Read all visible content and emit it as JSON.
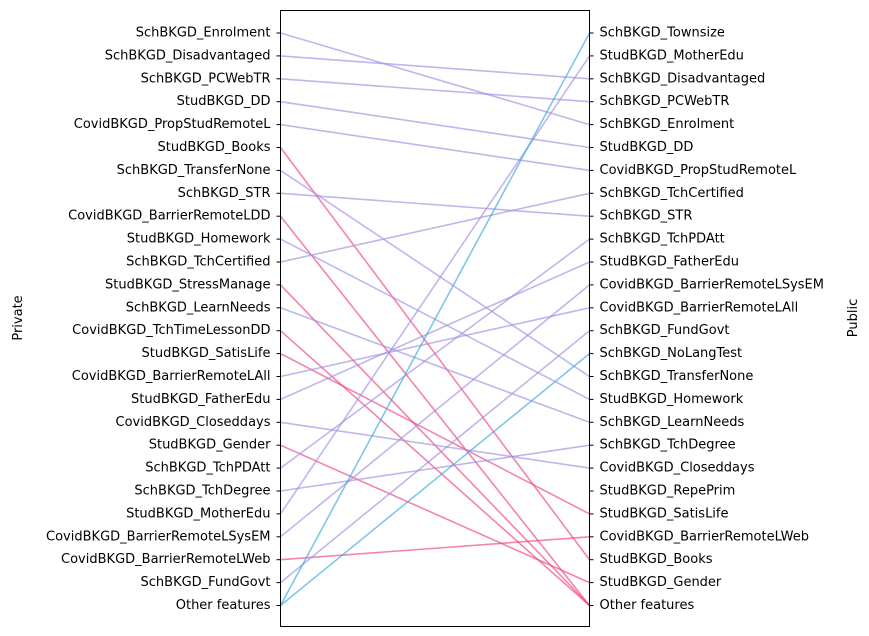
{
  "chart_data": {
    "type": "slope",
    "left_axis_label": "Private",
    "right_axis_label": "Public",
    "left_labels": [
      "SchBKGD_Enrolment",
      "SchBKGD_Disadvantaged",
      "SchBKGD_PCWebTR",
      "StudBKGD_DD",
      "CovidBKGD_PropStudRemoteL",
      "StudBKGD_Books",
      "SchBKGD_TransferNone",
      "SchBKGD_STR",
      "CovidBKGD_BarrierRemoteLDD",
      "StudBKGD_Homework",
      "SchBKGD_TchCertified",
      "StudBKGD_StressManage",
      "SchBKGD_LearnNeeds",
      "CovidBKGD_TchTimeLessonDD",
      "StudBKGD_SatisLife",
      "CovidBKGD_BarrierRemoteLAll",
      "StudBKGD_FatherEdu",
      "CovidBKGD_Closeddays",
      "StudBKGD_Gender",
      "SchBKGD_TchPDAtt",
      "SchBKGD_TchDegree",
      "StudBKGD_MotherEdu",
      "CovidBKGD_BarrierRemoteLSysEM",
      "CovidBKGD_BarrierRemoteLWeb",
      "SchBKGD_FundGovt",
      "Other features"
    ],
    "right_labels": [
      "SchBKGD_Townsize",
      "StudBKGD_MotherEdu",
      "SchBKGD_Disadvantaged",
      "SchBKGD_PCWebTR",
      "SchBKGD_Enrolment",
      "StudBKGD_DD",
      "CovidBKGD_PropStudRemoteL",
      "SchBKGD_TchCertified",
      "SchBKGD_STR",
      "SchBKGD_TchPDAtt",
      "StudBKGD_FatherEdu",
      "CovidBKGD_BarrierRemoteLSysEM",
      "CovidBKGD_BarrierRemoteLAll",
      "SchBKGD_FundGovt",
      "SchBKGD_NoLangTest",
      "SchBKGD_TransferNone",
      "StudBKGD_Homework",
      "SchBKGD_LearnNeeds",
      "SchBKGD_TchDegree",
      "CovidBKGD_Closeddays",
      "StudBKGD_RepePrim",
      "StudBKGD_SatisLife",
      "CovidBKGD_BarrierRemoteLWeb",
      "StudBKGD_Books",
      "StudBKGD_Gender",
      "Other features"
    ],
    "connections": [
      {
        "left": 0,
        "right": 4,
        "group": "same"
      },
      {
        "left": 1,
        "right": 2,
        "group": "same"
      },
      {
        "left": 2,
        "right": 3,
        "group": "same"
      },
      {
        "left": 3,
        "right": 5,
        "group": "same"
      },
      {
        "left": 4,
        "right": 6,
        "group": "same"
      },
      {
        "left": 5,
        "right": 23,
        "group": "down"
      },
      {
        "left": 6,
        "right": 15,
        "group": "same"
      },
      {
        "left": 7,
        "right": 8,
        "group": "same"
      },
      {
        "left": 8,
        "right": 25,
        "group": "down"
      },
      {
        "left": 9,
        "right": 16,
        "group": "same"
      },
      {
        "left": 10,
        "right": 7,
        "group": "same"
      },
      {
        "left": 11,
        "right": 25,
        "group": "down"
      },
      {
        "left": 12,
        "right": 17,
        "group": "same"
      },
      {
        "left": 13,
        "right": 25,
        "group": "down"
      },
      {
        "left": 14,
        "right": 21,
        "group": "down"
      },
      {
        "left": 15,
        "right": 12,
        "group": "same"
      },
      {
        "left": 16,
        "right": 10,
        "group": "same"
      },
      {
        "left": 17,
        "right": 19,
        "group": "same"
      },
      {
        "left": 18,
        "right": 24,
        "group": "down"
      },
      {
        "left": 19,
        "right": 9,
        "group": "same"
      },
      {
        "left": 20,
        "right": 18,
        "group": "same"
      },
      {
        "left": 21,
        "right": 1,
        "group": "same"
      },
      {
        "left": 22,
        "right": 11,
        "group": "same"
      },
      {
        "left": 23,
        "right": 22,
        "group": "down"
      },
      {
        "left": 24,
        "right": 13,
        "group": "same"
      },
      {
        "left": 25,
        "right": 0,
        "group": "up"
      },
      {
        "left": 25,
        "right": 14,
        "group": "up"
      }
    ],
    "colors": {
      "same": "#9d8fe0",
      "down": "#f0407f",
      "up": "#3aa7e0"
    },
    "grid": false
  }
}
